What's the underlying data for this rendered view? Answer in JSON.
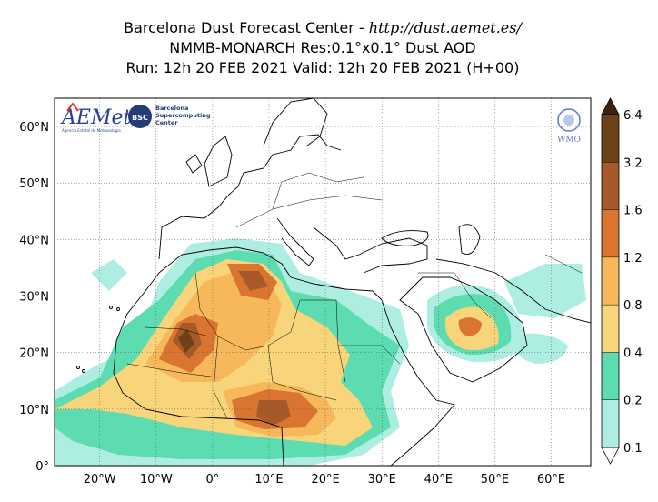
{
  "title": {
    "line1_prefix": "Barcelona Dust Forecast Center - ",
    "line1_url": "http://dust.aemet.es/",
    "line2": "NMMB-MONARCH   Res:0.1°x0.1°   Dust AOD",
    "line3": "Run: 12h 20 FEB 2021   Valid: 12h 20 FEB 2021 (H+00)"
  },
  "logos": {
    "aemet": "AEMet",
    "aemet_sub": "Agencia Estatal de Meteorología",
    "bsc_badge": "BSC",
    "bsc_line1": "Barcelona",
    "bsc_line2": "Supercomputing",
    "bsc_line3": "Center",
    "wmo": "WMO"
  },
  "map": {
    "lat_ticks": [
      {
        "value": 60,
        "label": "60°N"
      },
      {
        "value": 50,
        "label": "50°N"
      },
      {
        "value": 40,
        "label": "40°N"
      },
      {
        "value": 30,
        "label": "30°N"
      },
      {
        "value": 20,
        "label": "20°N"
      },
      {
        "value": 10,
        "label": "10°N"
      },
      {
        "value": 0,
        "label": "0°"
      }
    ],
    "lon_ticks": [
      {
        "value": -20,
        "label": "20°W"
      },
      {
        "value": -10,
        "label": "10°W"
      },
      {
        "value": 0,
        "label": "0°"
      },
      {
        "value": 10,
        "label": "10°E"
      },
      {
        "value": 20,
        "label": "20°E"
      },
      {
        "value": 30,
        "label": "30°E"
      },
      {
        "value": 40,
        "label": "40°E"
      },
      {
        "value": 50,
        "label": "50°E"
      },
      {
        "value": 60,
        "label": "60°E"
      }
    ],
    "extent": {
      "lon_min": -28,
      "lon_max": 67,
      "lat_min": 0,
      "lat_max": 65
    },
    "grid": "dotted"
  },
  "colorbar": {
    "levels": [
      "0.1",
      "0.2",
      "0.4",
      "0.8",
      "1.2",
      "1.6",
      "3.2",
      "6.4"
    ],
    "colors": [
      "#aeeee2",
      "#5cdcb0",
      "#f8d47a",
      "#f6b85a",
      "#d97530",
      "#a8592a",
      "#6e4218",
      "#3a2410"
    ]
  }
}
